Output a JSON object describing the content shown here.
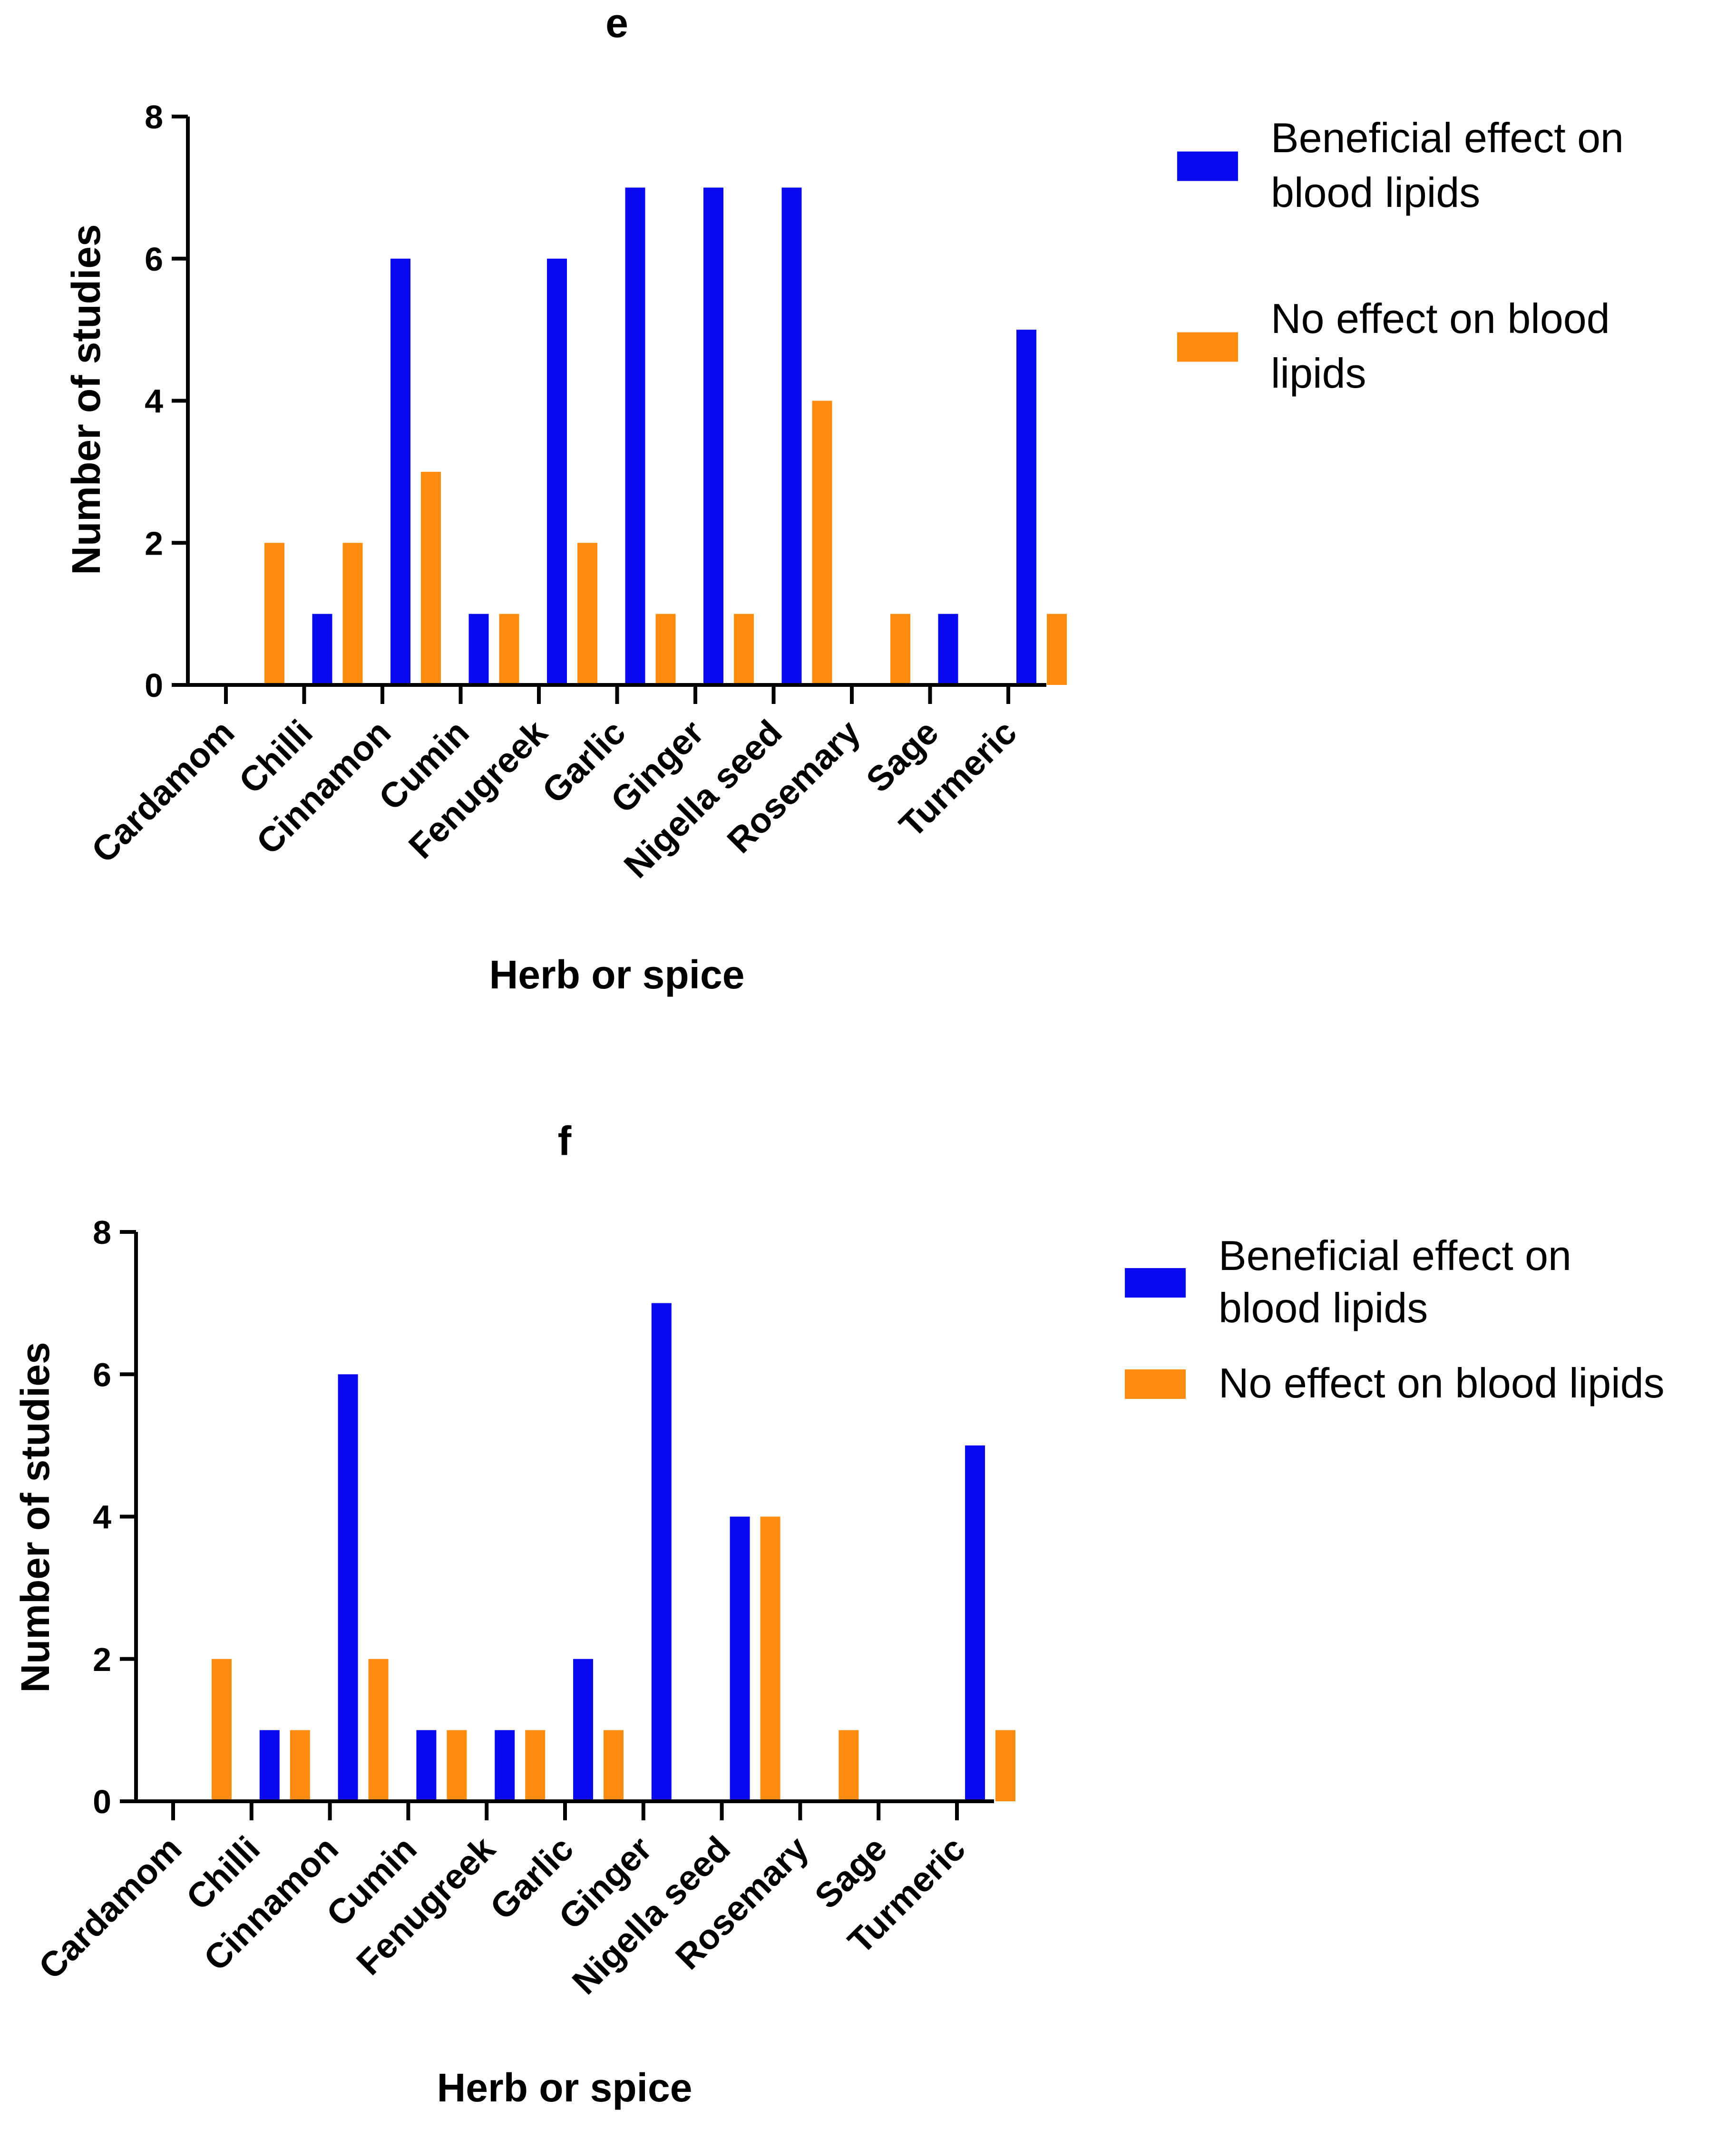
{
  "chart_data": [
    {
      "type": "bar",
      "title": "e",
      "xlabel": "Herb or spice",
      "ylabel": "Number of studies",
      "ylim": [
        0,
        8
      ],
      "yticks": [
        "0",
        "2",
        "4",
        "6",
        "8"
      ],
      "categories": [
        "Cardamom",
        "Chilli",
        "Cinnamon",
        "Cumin",
        "Fenugreek",
        "Garlic",
        "Ginger",
        "Nigella seed",
        "Rosemary",
        "Sage",
        "Turmeric"
      ],
      "series": [
        {
          "name": "Beneficial effect on blood lipids",
          "legend_lines": [
            "Beneficial effect on",
            "blood lipids"
          ],
          "color": "#0a0af0",
          "values": [
            0,
            1,
            6,
            1,
            6,
            7,
            7,
            7,
            0,
            1,
            5
          ]
        },
        {
          "name": "No effect on blood lipids",
          "legend_lines": [
            "No effect on blood",
            "lipids"
          ],
          "color": "#ff8c0f",
          "values": [
            2,
            2,
            3,
            1,
            2,
            1,
            1,
            4,
            1,
            0,
            1
          ]
        }
      ]
    },
    {
      "type": "bar",
      "title": "f",
      "xlabel": "Herb or spice",
      "ylabel": "Number of studies",
      "ylim": [
        0,
        8
      ],
      "yticks": [
        "0",
        "2",
        "4",
        "6",
        "8"
      ],
      "categories": [
        "Cardamom",
        "Chilli",
        "Cinnamon",
        "Cumin",
        "Fenugreek",
        "Garlic",
        "Ginger",
        "Nigella seed",
        "Rosemary",
        "Sage",
        "Turmeric"
      ],
      "series": [
        {
          "name": "Beneficial effect on blood lipids",
          "legend_lines": [
            "Beneficial effect on",
            "blood lipids"
          ],
          "color": "#0a0af0",
          "values": [
            0,
            1,
            6,
            1,
            1,
            2,
            7,
            4,
            0,
            0,
            5
          ]
        },
        {
          "name": "No effect on blood lipids",
          "legend_lines": [
            "No effect on blood lipids"
          ],
          "color": "#ff8c0f",
          "values": [
            2,
            1,
            2,
            1,
            1,
            1,
            0,
            4,
            1,
            0,
            1
          ]
        }
      ]
    }
  ]
}
